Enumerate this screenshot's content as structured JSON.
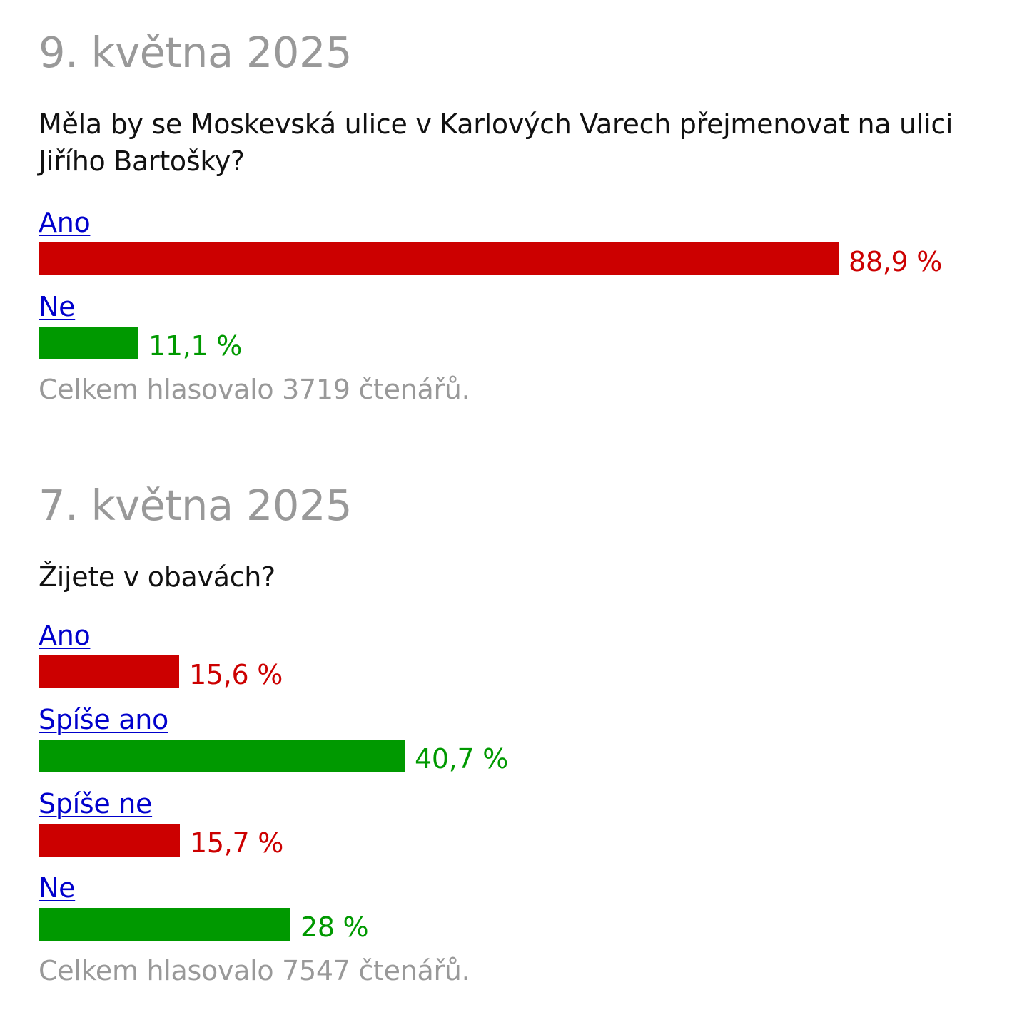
{
  "polls": [
    {
      "date": "9. května 2025",
      "question": "Měla by se Moskevská ulice v Karlových Varech přejmenovat na ulici Jiřího Bartošky?",
      "options": [
        {
          "label": "Ano",
          "percent": 88.9,
          "value_label": "88,9 %",
          "color": "#cc0000"
        },
        {
          "label": "Ne",
          "percent": 11.1,
          "value_label": "11,1 %",
          "color": "#009900"
        }
      ],
      "total": "Celkem hlasovalo 3719 čtenářů."
    },
    {
      "date": "7. května 2025",
      "question": "Žijete v obavách?",
      "options": [
        {
          "label": "Ano",
          "percent": 15.6,
          "value_label": "15,6 %",
          "color": "#cc0000"
        },
        {
          "label": "Spíše ano",
          "percent": 40.7,
          "value_label": "40,7 %",
          "color": "#009900"
        },
        {
          "label": "Spíše ne",
          "percent": 15.7,
          "value_label": "15,7 %",
          "color": "#cc0000"
        },
        {
          "label": "Ne",
          "percent": 28,
          "value_label": "28 %",
          "color": "#009900"
        }
      ],
      "total": "Celkem hlasovalo 7547 čtenářů."
    }
  ]
}
